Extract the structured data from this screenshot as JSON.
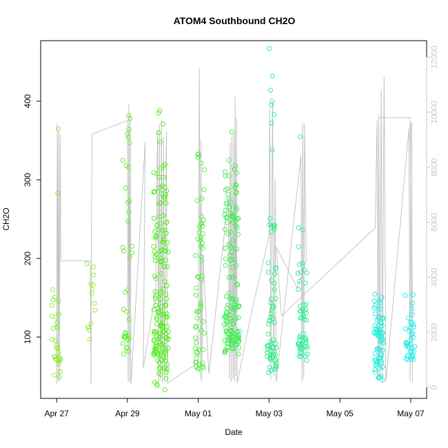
{
  "chart_data": {
    "type": "scatter",
    "title": "ATOM4 Southbound CH2O",
    "xlabel": "Date",
    "ylabel": "CH2O",
    "x_ticks": [
      {
        "label": "Apr 27",
        "day": 0
      },
      {
        "label": "Apr 29",
        "day": 2
      },
      {
        "label": "May 01",
        "day": 4
      },
      {
        "label": "May 03",
        "day": 6
      },
      {
        "label": "May 05",
        "day": 8
      },
      {
        "label": "May 07",
        "day": 10
      }
    ],
    "xlim_days": [
      -0.45,
      10.45
    ],
    "y_ticks": [
      100,
      200,
      300,
      400
    ],
    "ylim": [
      22,
      477
    ],
    "y2_ticks": [
      0,
      2000,
      4000,
      6000,
      8000,
      10000,
      12000
    ],
    "y2lim": [
      -400,
      12600
    ],
    "y2_label": "",
    "point_color_low": "#66ff00",
    "point_color_high": "#00ffff",
    "altitude_line_color": "#bdbdbd",
    "flights": [
      {
        "day": 0.0,
        "stats": [
          37,
          68,
          78,
          105,
          175
        ],
        "outliers": [
          365,
          283
        ],
        "color": "#88ee33",
        "n": 30
      },
      {
        "day": 0.95,
        "stats": [
          86,
          112,
          140,
          172,
          208
        ],
        "outliers": [],
        "color": "#99ee44",
        "n": 14
      },
      {
        "day": 2.0,
        "stats": [
          72,
          95,
          107,
          180,
          330
        ],
        "outliers": [
          382,
          378,
          364,
          358,
          354,
          347,
          318,
          259,
          247
        ],
        "color": "#66ee33",
        "n": 30
      },
      {
        "day": 2.95,
        "stats": [
          30,
          85,
          130,
          215,
          320
        ],
        "outliers": [
          388,
          385,
          371,
          360,
          348
        ],
        "color": "#55ee22",
        "n": 170
      },
      {
        "day": 4.05,
        "stats": [
          55,
          92,
          135,
          235,
          345
        ],
        "outliers": [],
        "color": "#55ee44",
        "n": 60
      },
      {
        "day": 4.95,
        "stats": [
          78,
          100,
          140,
          250,
          335
        ],
        "outliers": [
          361
        ],
        "color": "#44ee55",
        "n": 150
      },
      {
        "day": 6.08,
        "stats": [
          50,
          75,
          95,
          160,
          270
        ],
        "outliers": [
          467,
          432,
          414,
          400,
          395,
          383,
          372,
          338,
          243,
          242
        ],
        "color": "#33ee88",
        "n": 60
      },
      {
        "day": 6.95,
        "stats": [
          70,
          88,
          98,
          135,
          248
        ],
        "outliers": [
          355
        ],
        "color": "#33ee99",
        "n": 60
      },
      {
        "day": 9.1,
        "stats": [
          42,
          73,
          98,
          118,
          155
        ],
        "outliers": [],
        "color": "#22eedd",
        "n": 70
      },
      {
        "day": 9.98,
        "stats": [
          68,
          80,
          95,
          115,
          155
        ],
        "outliers": [],
        "color": "#22eeee",
        "n": 40
      }
    ],
    "altitude_profile": [
      [
        0.0,
        100
      ],
      [
        0.02,
        9600
      ],
      [
        0.04,
        200
      ],
      [
        0.06,
        9300
      ],
      [
        0.08,
        200
      ],
      [
        0.1,
        9200
      ],
      [
        0.12,
        4600
      ],
      [
        0.95,
        4600
      ],
      [
        0.97,
        100
      ],
      [
        0.98,
        4600
      ],
      [
        1.0,
        9200
      ],
      [
        2.0,
        9700
      ],
      [
        2.02,
        200
      ],
      [
        2.04,
        10300
      ],
      [
        2.06,
        200
      ],
      [
        2.08,
        9900
      ],
      [
        2.1,
        100
      ],
      [
        2.5,
        8900
      ],
      [
        2.45,
        700
      ],
      [
        2.8,
        3500
      ],
      [
        2.85,
        9300
      ],
      [
        2.88,
        200
      ],
      [
        2.9,
        9600
      ],
      [
        2.93,
        250
      ],
      [
        2.96,
        9700
      ],
      [
        2.99,
        200
      ],
      [
        3.02,
        9100
      ],
      [
        3.05,
        300
      ],
      [
        3.1,
        9300
      ],
      [
        3.13,
        150
      ],
      [
        4.0,
        900
      ],
      [
        4.03,
        11600
      ],
      [
        4.06,
        300
      ],
      [
        4.08,
        9000
      ],
      [
        4.1,
        200
      ],
      [
        4.13,
        4800
      ],
      [
        4.3,
        500
      ],
      [
        4.85,
        6900
      ],
      [
        4.88,
        300
      ],
      [
        4.9,
        8900
      ],
      [
        4.93,
        200
      ],
      [
        4.95,
        9100
      ],
      [
        4.98,
        300
      ],
      [
        5.0,
        9200
      ],
      [
        5.02,
        200
      ],
      [
        5.04,
        10600
      ],
      [
        5.06,
        400
      ],
      [
        5.08,
        9800
      ],
      [
        5.1,
        150
      ],
      [
        5.5,
        2700
      ],
      [
        6.0,
        5500
      ],
      [
        6.02,
        10100
      ],
      [
        6.05,
        300
      ],
      [
        6.1,
        10400
      ],
      [
        6.13,
        400
      ],
      [
        6.17,
        7600
      ],
      [
        6.2,
        200
      ],
      [
        6.9,
        8400
      ],
      [
        6.93,
        200
      ],
      [
        6.95,
        9600
      ],
      [
        6.98,
        300
      ],
      [
        7.0,
        9600
      ],
      [
        7.05,
        4600
      ],
      [
        6.8,
        3600
      ],
      [
        6.2,
        5100
      ],
      [
        6.35,
        2600
      ],
      [
        9.0,
        5800
      ],
      [
        9.05,
        9700
      ],
      [
        9.08,
        300
      ],
      [
        9.1,
        9900
      ],
      [
        9.13,
        400
      ],
      [
        9.17,
        10800
      ],
      [
        9.2,
        200
      ],
      [
        9.25,
        11300
      ],
      [
        9.3,
        200
      ],
      [
        9.95,
        9400
      ],
      [
        9.98,
        200
      ],
      [
        10.0,
        9600
      ],
      [
        10.03,
        9600
      ],
      [
        10.05,
        200
      ],
      [
        9.98,
        9800
      ],
      [
        9.1,
        9800
      ]
    ]
  }
}
